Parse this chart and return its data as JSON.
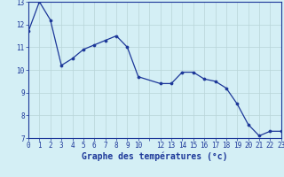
{
  "x": [
    0,
    1,
    2,
    3,
    4,
    5,
    6,
    7,
    8,
    9,
    10,
    12,
    13,
    14,
    15,
    16,
    17,
    18,
    19,
    20,
    21,
    22,
    23
  ],
  "y": [
    11.7,
    13.0,
    12.2,
    10.2,
    10.5,
    10.9,
    11.1,
    11.3,
    11.5,
    11.0,
    9.7,
    9.4,
    9.4,
    9.9,
    9.9,
    9.6,
    9.5,
    9.2,
    8.5,
    7.6,
    7.1,
    7.3,
    7.3
  ],
  "xlim": [
    0,
    23
  ],
  "ylim": [
    7,
    13
  ],
  "yticks": [
    7,
    8,
    9,
    10,
    11,
    12,
    13
  ],
  "xtick_labels": [
    "0",
    "1",
    "2",
    "3",
    "4",
    "5",
    "6",
    "7",
    "8",
    "9",
    "10",
    "",
    "12",
    "13",
    "14",
    "15",
    "16",
    "17",
    "18",
    "19",
    "20",
    "21",
    "22",
    "23"
  ],
  "xtick_positions": [
    0,
    1,
    2,
    3,
    4,
    5,
    6,
    7,
    8,
    9,
    10,
    11,
    12,
    13,
    14,
    15,
    16,
    17,
    18,
    19,
    20,
    21,
    22,
    23
  ],
  "xlabel": "Graphe des températures (°c)",
  "line_color": "#1c3799",
  "marker": "o",
  "marker_size": 2.2,
  "background_color": "#d4eff5",
  "grid_color": "#b8d4d8",
  "axis_color": "#1c3799",
  "label_fontsize": 6.5,
  "tick_fontsize": 5.5,
  "xlabel_fontsize": 7.0
}
